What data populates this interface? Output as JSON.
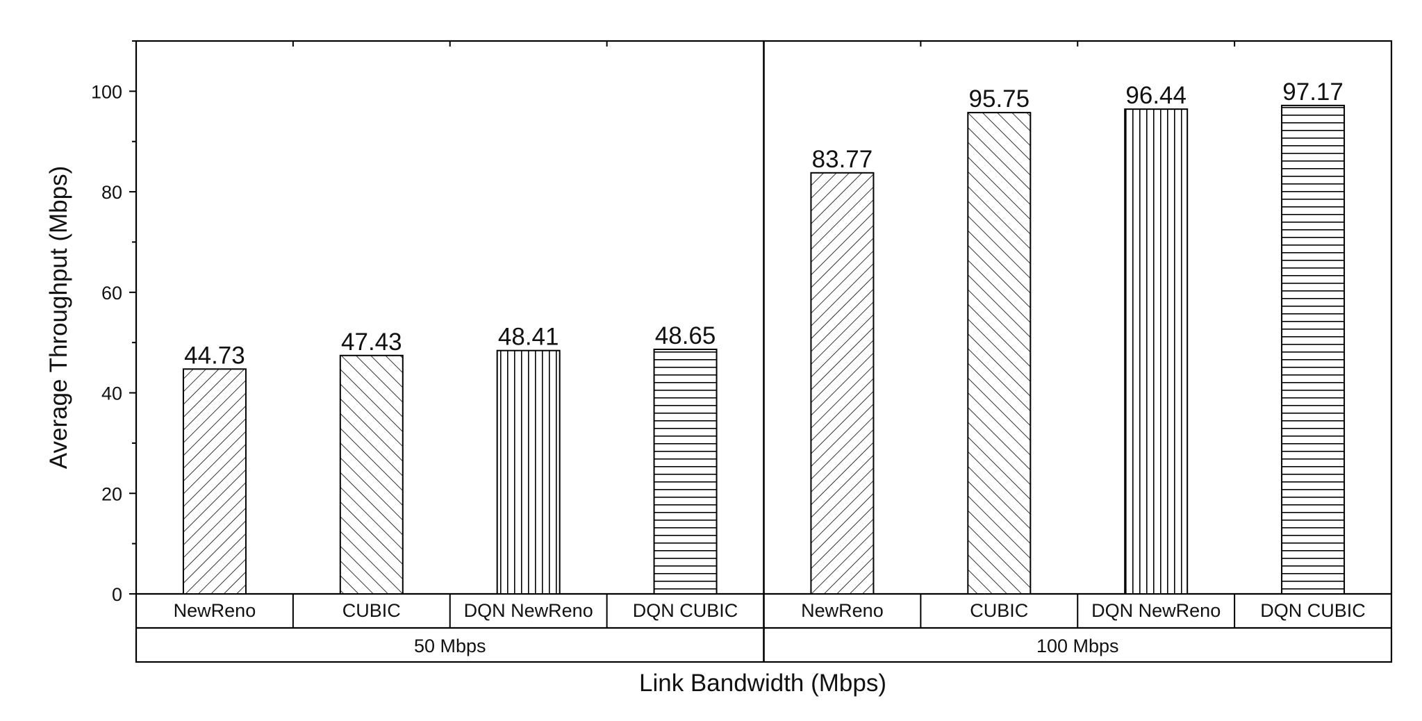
{
  "chart_data": {
    "type": "bar",
    "xlabel": "Link Bandwidth (Mbps)",
    "ylabel": "Average Throughput (Mbps)",
    "ylim": [
      0,
      110
    ],
    "yticks": [
      "0",
      "20",
      "40",
      "60",
      "80",
      "100"
    ],
    "grid": false,
    "groups": [
      {
        "label": "50 Mbps",
        "categories": [
          "NewReno",
          "CUBIC",
          "DQN NewReno",
          "DQN CUBIC"
        ],
        "values": [
          44.73,
          47.43,
          48.41,
          48.65
        ],
        "value_labels": [
          "44.73",
          "47.43",
          "48.41",
          "48.65"
        ]
      },
      {
        "label": "100 Mbps",
        "categories": [
          "NewReno",
          "CUBIC",
          "DQN NewReno",
          "DQN CUBIC"
        ],
        "values": [
          83.77,
          95.75,
          96.44,
          97.17
        ],
        "value_labels": [
          "83.77",
          "95.75",
          "96.44",
          "97.17"
        ]
      }
    ],
    "patterns": [
      "diagonal-forward",
      "diagonal-backward",
      "vertical",
      "horizontal"
    ],
    "colors": {
      "bar_fill": "#ffffff",
      "stroke": "#000000"
    }
  }
}
